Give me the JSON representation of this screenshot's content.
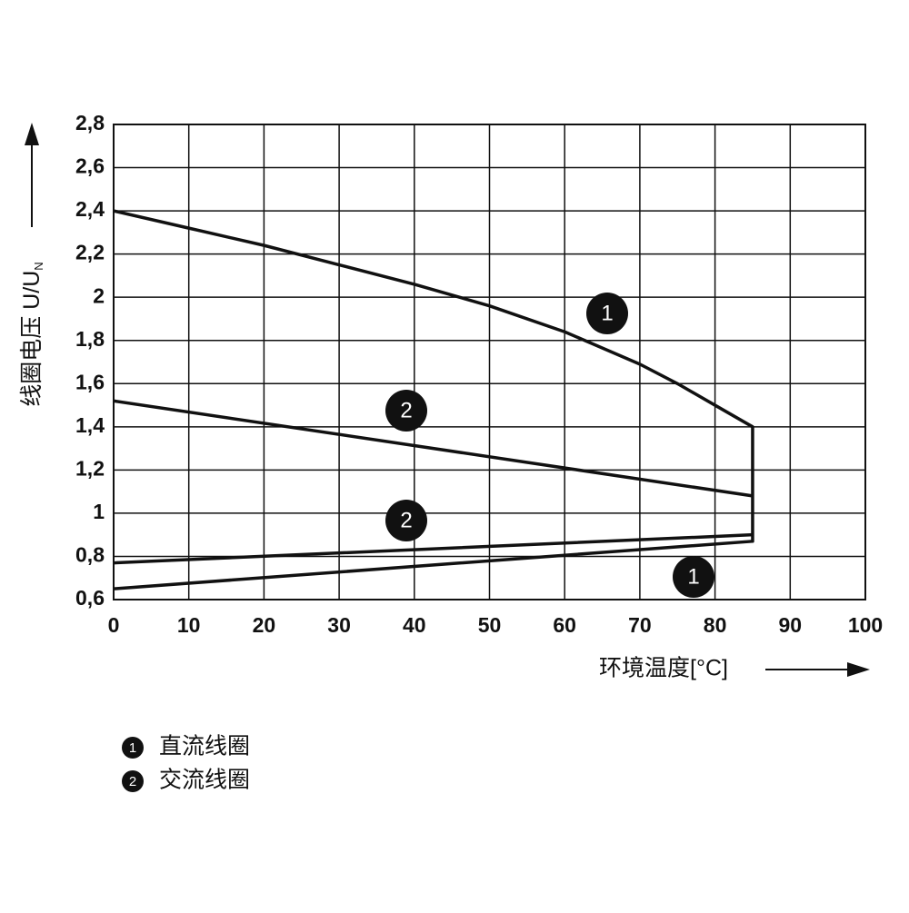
{
  "chart_data": {
    "type": "line",
    "xlabel": "环境温度[°C]",
    "ylabel": "线圈电压 U/U",
    "ylabel_sub": "N",
    "xlim": [
      0,
      100
    ],
    "xticks": [
      0,
      10,
      20,
      30,
      40,
      50,
      60,
      70,
      80,
      90,
      100
    ],
    "ylim": [
      0.6,
      2.8
    ],
    "yticks": [
      {
        "value": 0.6,
        "label": "0,6"
      },
      {
        "value": 0.8,
        "label": "0,8"
      },
      1,
      {
        "value": 1.2,
        "label": "1,2"
      },
      {
        "value": 1.4,
        "label": "1,4"
      },
      {
        "value": 1.6,
        "label": "1,6"
      },
      {
        "value": 1.8,
        "label": "1,8"
      },
      2,
      {
        "value": 2.2,
        "label": "2,2"
      },
      {
        "value": 2.4,
        "label": "2,4"
      },
      {
        "value": 2.6,
        "label": "2,6"
      },
      {
        "value": 2.8,
        "label": "2,8"
      }
    ],
    "grid": true,
    "series": [
      {
        "name": "直流线圈",
        "marker": "1",
        "color": "#111111",
        "x": [
          0,
          10,
          20,
          30,
          40,
          50,
          60,
          70,
          75,
          80,
          85,
          85,
          0
        ],
        "values": [
          2.4,
          2.32,
          2.24,
          2.15,
          2.06,
          1.96,
          1.84,
          1.69,
          1.6,
          1.5,
          1.4,
          0.87,
          0.65
        ]
      },
      {
        "name": "交流线圈",
        "marker": "2",
        "color": "#111111",
        "x": [
          0,
          85,
          null,
          0,
          85
        ],
        "values": [
          1.52,
          1.08,
          null,
          0.77,
          0.9
        ]
      }
    ],
    "annotations": [
      "1",
      "2",
      "2",
      "1"
    ]
  }
}
